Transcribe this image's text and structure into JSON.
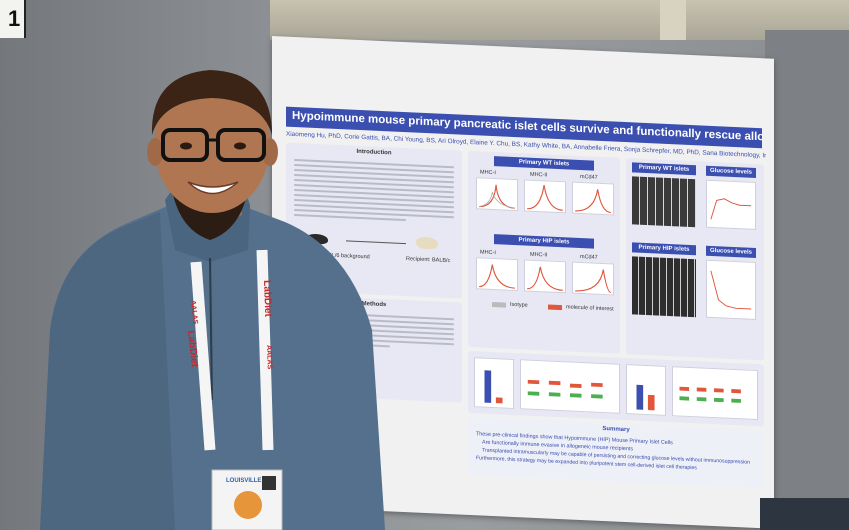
{
  "sign": {
    "label": "1"
  },
  "poster": {
    "title": "Hypoimmune mouse primary pancreatic islet cells survive and functionally rescue allogeneic diabetic mice",
    "authors": "Xiaomeng Hu, PhD, Corie Gattis, BA, Chi Young, BS, Ari Olroyd, Elaine Y. Chu, BS, Kathy White, BA, Annabelle Friera, Sonja Schrepfer, MD, PhD, Sana Biotechnology, Inc.",
    "sections": {
      "introduction": "Introduction",
      "primary_wt_islets": "Primary WT islets",
      "primary_hip_islets": "Primary HIP islets",
      "primary_wt_islets_right": "Primary WT islets",
      "glucose_levels": "Glucose levels",
      "primary_hip_islets_right": "Primary HIP islets",
      "glucose_levels_2": "Glucose levels",
      "methods": "Methods",
      "summary": "Summary"
    },
    "markers": {
      "mhc_i": "MHC-I",
      "mhc_ii": "MHC-II",
      "mcd47": "mCd47"
    },
    "intro_captions": {
      "donor": "Donor: C57BL/6 background",
      "recipient": "Recipient: BALB/c"
    },
    "legend": {
      "isotype": "Isotype",
      "molecule": "molecule of interest"
    },
    "summary_lines": [
      "These pre-clinical findings show that Hypoimmune (HIP) Mouse Primary Islet Cells",
      "Are functionally immune evasive in allogeneic mouse recipients",
      "Transplanted intramuscularly may be capable of persisting and correcting glucose levels without immunosuppression",
      "Furthermore, this strategy may be expanded into pluripotent stem cell-derived islet cell therapies"
    ],
    "colors": {
      "title_bar": "#3a4fb0",
      "panel": "#e7e8f3",
      "curve": "#e0573c"
    }
  },
  "lanyard": {
    "text": "LabDiet",
    "subtext": "AALAS"
  },
  "badge": {
    "city": "LOUISVILLE"
  }
}
